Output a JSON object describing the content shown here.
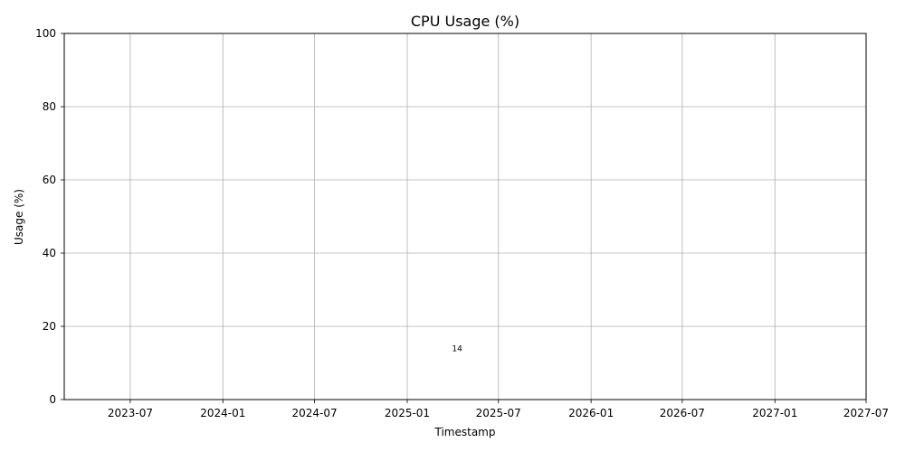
{
  "chart_data": {
    "type": "scatter",
    "title": "CPU Usage (%)",
    "xlabel": "Timestamp",
    "ylabel": "Usage (%)",
    "x_tick_labels": [
      "2023-07",
      "2024-01",
      "2024-07",
      "2025-01",
      "2025-07",
      "2026-01",
      "2026-07",
      "2027-01",
      "2027-07"
    ],
    "y_tick_labels": [
      "0",
      "20",
      "40",
      "60",
      "80",
      "100"
    ],
    "ylim": [
      0,
      100
    ],
    "xlim": [
      "2023-02-20",
      "2027-07-01"
    ],
    "grid": true,
    "legend": "none",
    "series": [
      {
        "x": [
          "2025-04-10"
        ],
        "y": [
          14
        ],
        "labels": [
          "14"
        ]
      }
    ]
  }
}
